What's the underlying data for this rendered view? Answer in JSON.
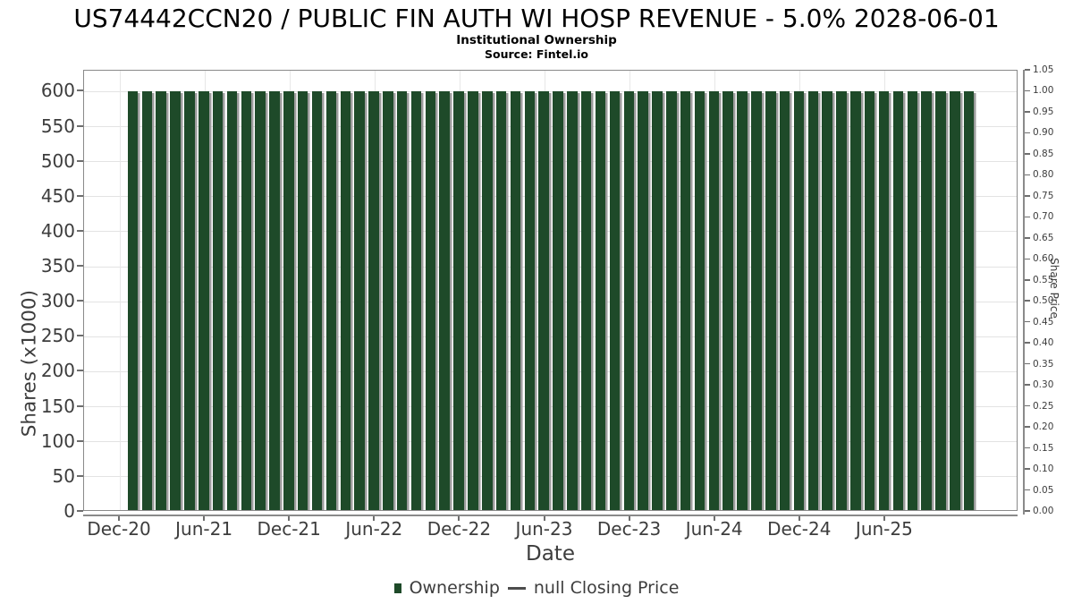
{
  "header": {
    "title": "US74442CCN20 / PUBLIC FIN AUTH WI HOSP REVENUE - 5.0% 2028-06-01",
    "subtitle": "Institutional Ownership",
    "source": "Source: Fintel.io"
  },
  "axes": {
    "x_label": "Date",
    "y_left_label": "Shares (x1000)",
    "y_right_label": "Share Price",
    "x_tick_labels": [
      "Dec-20",
      "Jun-21",
      "Dec-21",
      "Jun-22",
      "Dec-22",
      "Jun-23",
      "Dec-23",
      "Jun-24",
      "Dec-24",
      "Jun-25"
    ],
    "y_left_ticks": [
      "0",
      "50",
      "100",
      "150",
      "200",
      "250",
      "300",
      "350",
      "400",
      "450",
      "500",
      "550",
      "600"
    ],
    "y_right_ticks": [
      "0.00",
      "0.05",
      "0.10",
      "0.15",
      "0.20",
      "0.25",
      "0.30",
      "0.35",
      "0.40",
      "0.45",
      "0.50",
      "0.55",
      "0.60",
      "0.65",
      "0.70",
      "0.75",
      "0.80",
      "0.85",
      "0.90",
      "0.95",
      "1.00",
      "1.05"
    ]
  },
  "legend": {
    "ownership_label": "Ownership",
    "price_label": "null Closing Price"
  },
  "colors": {
    "bar": "#1e4a29",
    "bar_shadow": "#9c9c9c",
    "grid": "#e3e3e3",
    "spine": "#8a8a8a",
    "text": "#3d3d3d",
    "title": "#000000",
    "legend_dash": "#4d4d4d"
  },
  "chart_data": {
    "type": "bar",
    "title": "US74442CCN20 / PUBLIC FIN AUTH WI HOSP REVENUE - 5.0% 2028-06-01",
    "subtitle": "Institutional Ownership",
    "source": "Source: Fintel.io",
    "xlabel": "Date",
    "ylabel_left": "Shares (x1000)",
    "ylabel_right": "Share Price",
    "ylim_left": [
      0,
      630
    ],
    "ylim_right": [
      0,
      1.05
    ],
    "grid": "horizontal and vertical, light gray",
    "legend_position": "bottom-center",
    "categories": [
      "Dec-20",
      "Jan-21",
      "Feb-21",
      "Mar-21",
      "Apr-21",
      "May-21",
      "Jun-21",
      "Jul-21",
      "Aug-21",
      "Sep-21",
      "Oct-21",
      "Nov-21",
      "Dec-21",
      "Jan-22",
      "Feb-22",
      "Mar-22",
      "Apr-22",
      "May-22",
      "Jun-22",
      "Jul-22",
      "Aug-22",
      "Sep-22",
      "Oct-22",
      "Nov-22",
      "Dec-22",
      "Jan-23",
      "Feb-23",
      "Mar-23",
      "Apr-23",
      "May-23",
      "Jun-23",
      "Jul-23",
      "Aug-23",
      "Sep-23",
      "Oct-23",
      "Nov-23",
      "Dec-23",
      "Jan-24",
      "Feb-24",
      "Mar-24",
      "Apr-24",
      "May-24",
      "Jun-24",
      "Jul-24",
      "Aug-24",
      "Sep-24",
      "Oct-24",
      "Nov-24",
      "Dec-24",
      "Jan-25",
      "Feb-25",
      "Mar-25",
      "Apr-25",
      "May-25",
      "Jun-25",
      "Jul-25",
      "Aug-25",
      "Sep-25",
      "Oct-25",
      "Nov-25"
    ],
    "series": [
      {
        "name": "Ownership",
        "values": [
          600,
          600,
          600,
          600,
          600,
          600,
          600,
          600,
          600,
          600,
          600,
          600,
          600,
          600,
          600,
          600,
          600,
          600,
          600,
          600,
          600,
          600,
          600,
          600,
          600,
          600,
          600,
          600,
          600,
          600,
          600,
          600,
          600,
          600,
          600,
          600,
          600,
          600,
          600,
          600,
          600,
          600,
          600,
          600,
          600,
          600,
          600,
          600,
          600,
          600,
          600,
          600,
          600,
          600,
          600,
          600,
          600,
          600,
          600,
          600
        ]
      }
    ],
    "price_series": {
      "name": "null Closing Price",
      "values": []
    },
    "x_tick_every": 6,
    "x_tick_labels": [
      "Dec-20",
      "Jun-21",
      "Dec-21",
      "Jun-22",
      "Dec-22",
      "Jun-23",
      "Dec-23",
      "Jun-24",
      "Dec-24",
      "Jun-25"
    ]
  }
}
